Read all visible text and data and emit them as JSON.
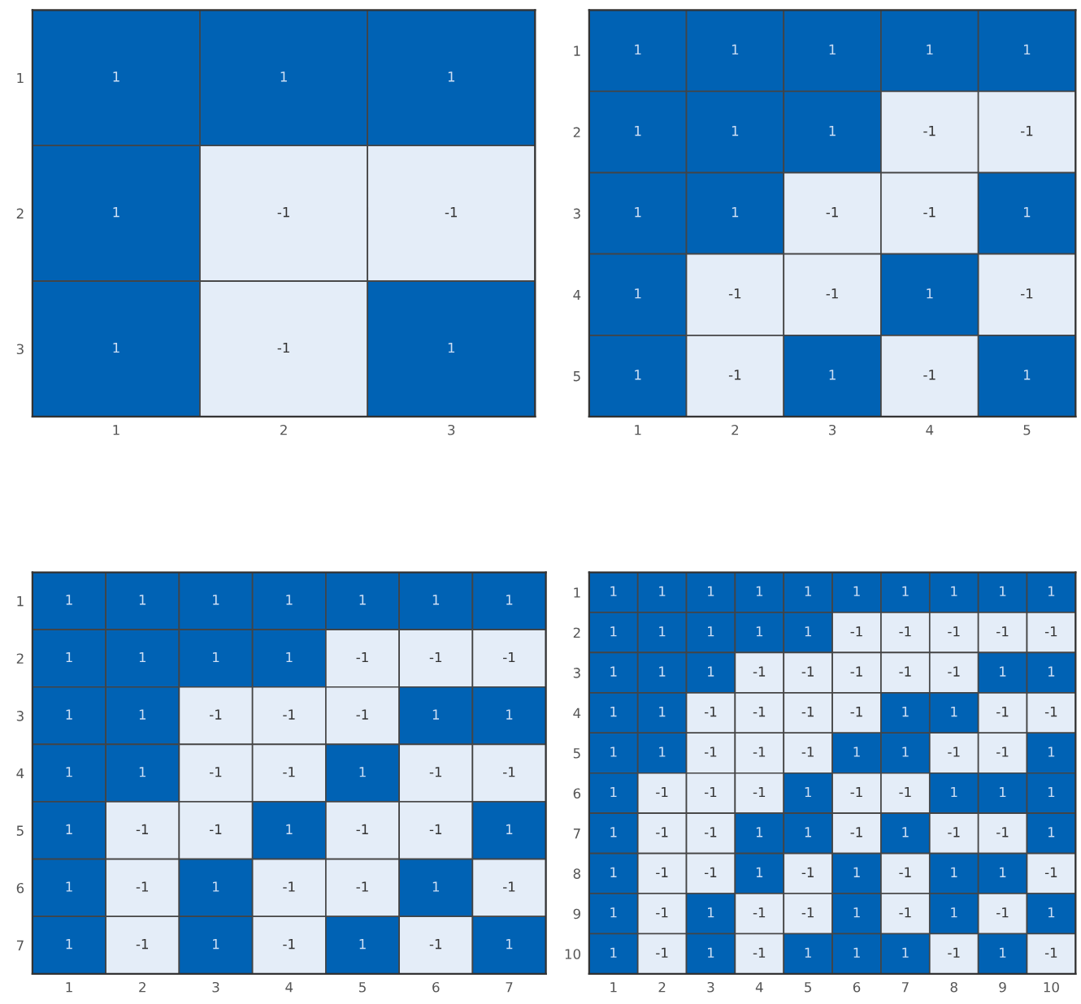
{
  "chart_data": [
    {
      "type": "heatmap",
      "categories": [
        "1",
        "2",
        "3"
      ],
      "y_categories": [
        "1",
        "2",
        "3"
      ],
      "data_labels": true,
      "cells": [
        [
          1,
          1,
          1
        ],
        [
          1,
          -1,
          -1
        ],
        [
          1,
          -1,
          1
        ]
      ]
    },
    {
      "type": "heatmap",
      "categories": [
        "1",
        "2",
        "3",
        "4",
        "5"
      ],
      "y_categories": [
        "1",
        "2",
        "3",
        "4",
        "5"
      ],
      "data_labels": true,
      "cells": [
        [
          1,
          1,
          1,
          1,
          1
        ],
        [
          1,
          1,
          1,
          -1,
          -1
        ],
        [
          1,
          1,
          -1,
          -1,
          1
        ],
        [
          1,
          -1,
          -1,
          1,
          -1
        ],
        [
          1,
          -1,
          1,
          -1,
          1
        ]
      ]
    },
    {
      "type": "heatmap",
      "categories": [
        "1",
        "2",
        "3",
        "4",
        "5",
        "6",
        "7"
      ],
      "y_categories": [
        "1",
        "2",
        "3",
        "4",
        "5",
        "6",
        "7"
      ],
      "data_labels": true,
      "cells": [
        [
          1,
          1,
          1,
          1,
          1,
          1,
          1
        ],
        [
          1,
          1,
          1,
          1,
          -1,
          -1,
          -1
        ],
        [
          1,
          1,
          -1,
          -1,
          -1,
          1,
          1
        ],
        [
          1,
          1,
          -1,
          -1,
          1,
          -1,
          -1
        ],
        [
          1,
          -1,
          -1,
          1,
          -1,
          -1,
          1
        ],
        [
          1,
          -1,
          1,
          -1,
          -1,
          1,
          -1
        ],
        [
          1,
          -1,
          1,
          -1,
          1,
          -1,
          1
        ]
      ]
    },
    {
      "type": "heatmap",
      "categories": [
        "1",
        "2",
        "3",
        "4",
        "5",
        "6",
        "7",
        "8",
        "9",
        "10"
      ],
      "y_categories": [
        "1",
        "2",
        "3",
        "4",
        "5",
        "6",
        "7",
        "8",
        "9",
        "10"
      ],
      "data_labels": true,
      "cells": [
        [
          1,
          1,
          1,
          1,
          1,
          1,
          1,
          1,
          1,
          1
        ],
        [
          1,
          1,
          1,
          1,
          1,
          -1,
          -1,
          -1,
          -1,
          -1
        ],
        [
          1,
          1,
          1,
          -1,
          -1,
          -1,
          -1,
          -1,
          1,
          1
        ],
        [
          1,
          1,
          -1,
          -1,
          -1,
          -1,
          1,
          1,
          -1,
          -1
        ],
        [
          1,
          1,
          -1,
          -1,
          -1,
          1,
          1,
          -1,
          -1,
          1
        ],
        [
          1,
          -1,
          -1,
          -1,
          1,
          -1,
          -1,
          1,
          1,
          1
        ],
        [
          1,
          -1,
          -1,
          1,
          1,
          -1,
          1,
          -1,
          -1,
          1
        ],
        [
          1,
          -1,
          -1,
          1,
          -1,
          1,
          -1,
          1,
          1,
          -1
        ],
        [
          1,
          -1,
          1,
          -1,
          -1,
          1,
          -1,
          1,
          -1,
          1
        ],
        [
          1,
          -1,
          1,
          -1,
          1,
          1,
          1,
          -1,
          1,
          -1
        ]
      ]
    }
  ]
}
